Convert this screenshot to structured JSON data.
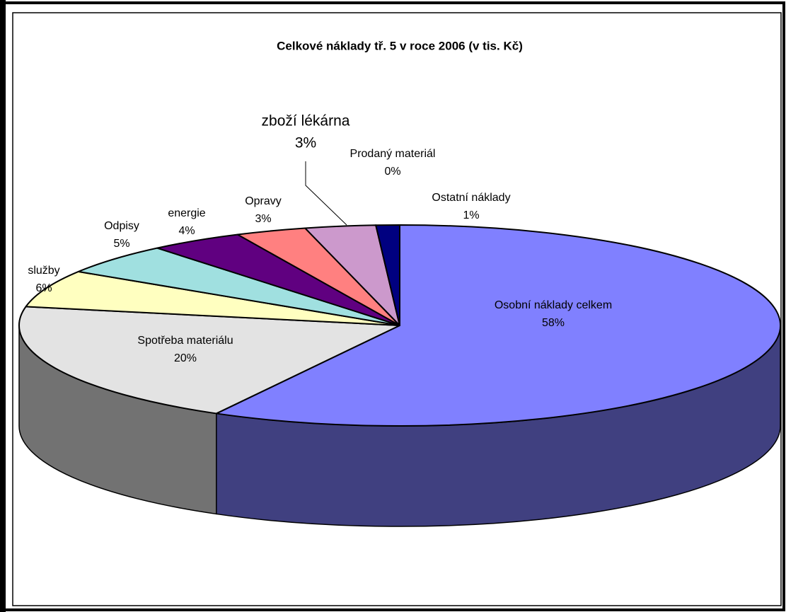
{
  "chart_data": {
    "type": "pie3d",
    "title": "Celkové náklady tř. 5 v roce 2006   (v tis.  Kč)",
    "categories": [
      "Osobní náklady celkem",
      "Spotřeba materiálu",
      "služby",
      "Odpisy",
      "energie",
      "Opravy",
      "zboží lékárna",
      "Prodaný materiál",
      "Ostatní náklady"
    ],
    "values": [
      58,
      20,
      6,
      5,
      4,
      3,
      3,
      0,
      1
    ],
    "value_labels": [
      "58%",
      "20%",
      "6%",
      "5%",
      "4%",
      "3%",
      "3%",
      "0%",
      "1%"
    ],
    "colors": [
      "#8080ff",
      "#e3e3e3",
      "#ffffc0",
      "#a0e0e0",
      "#600080",
      "#ff8080",
      "#cc99cc",
      "#808000",
      "#000080"
    ]
  }
}
